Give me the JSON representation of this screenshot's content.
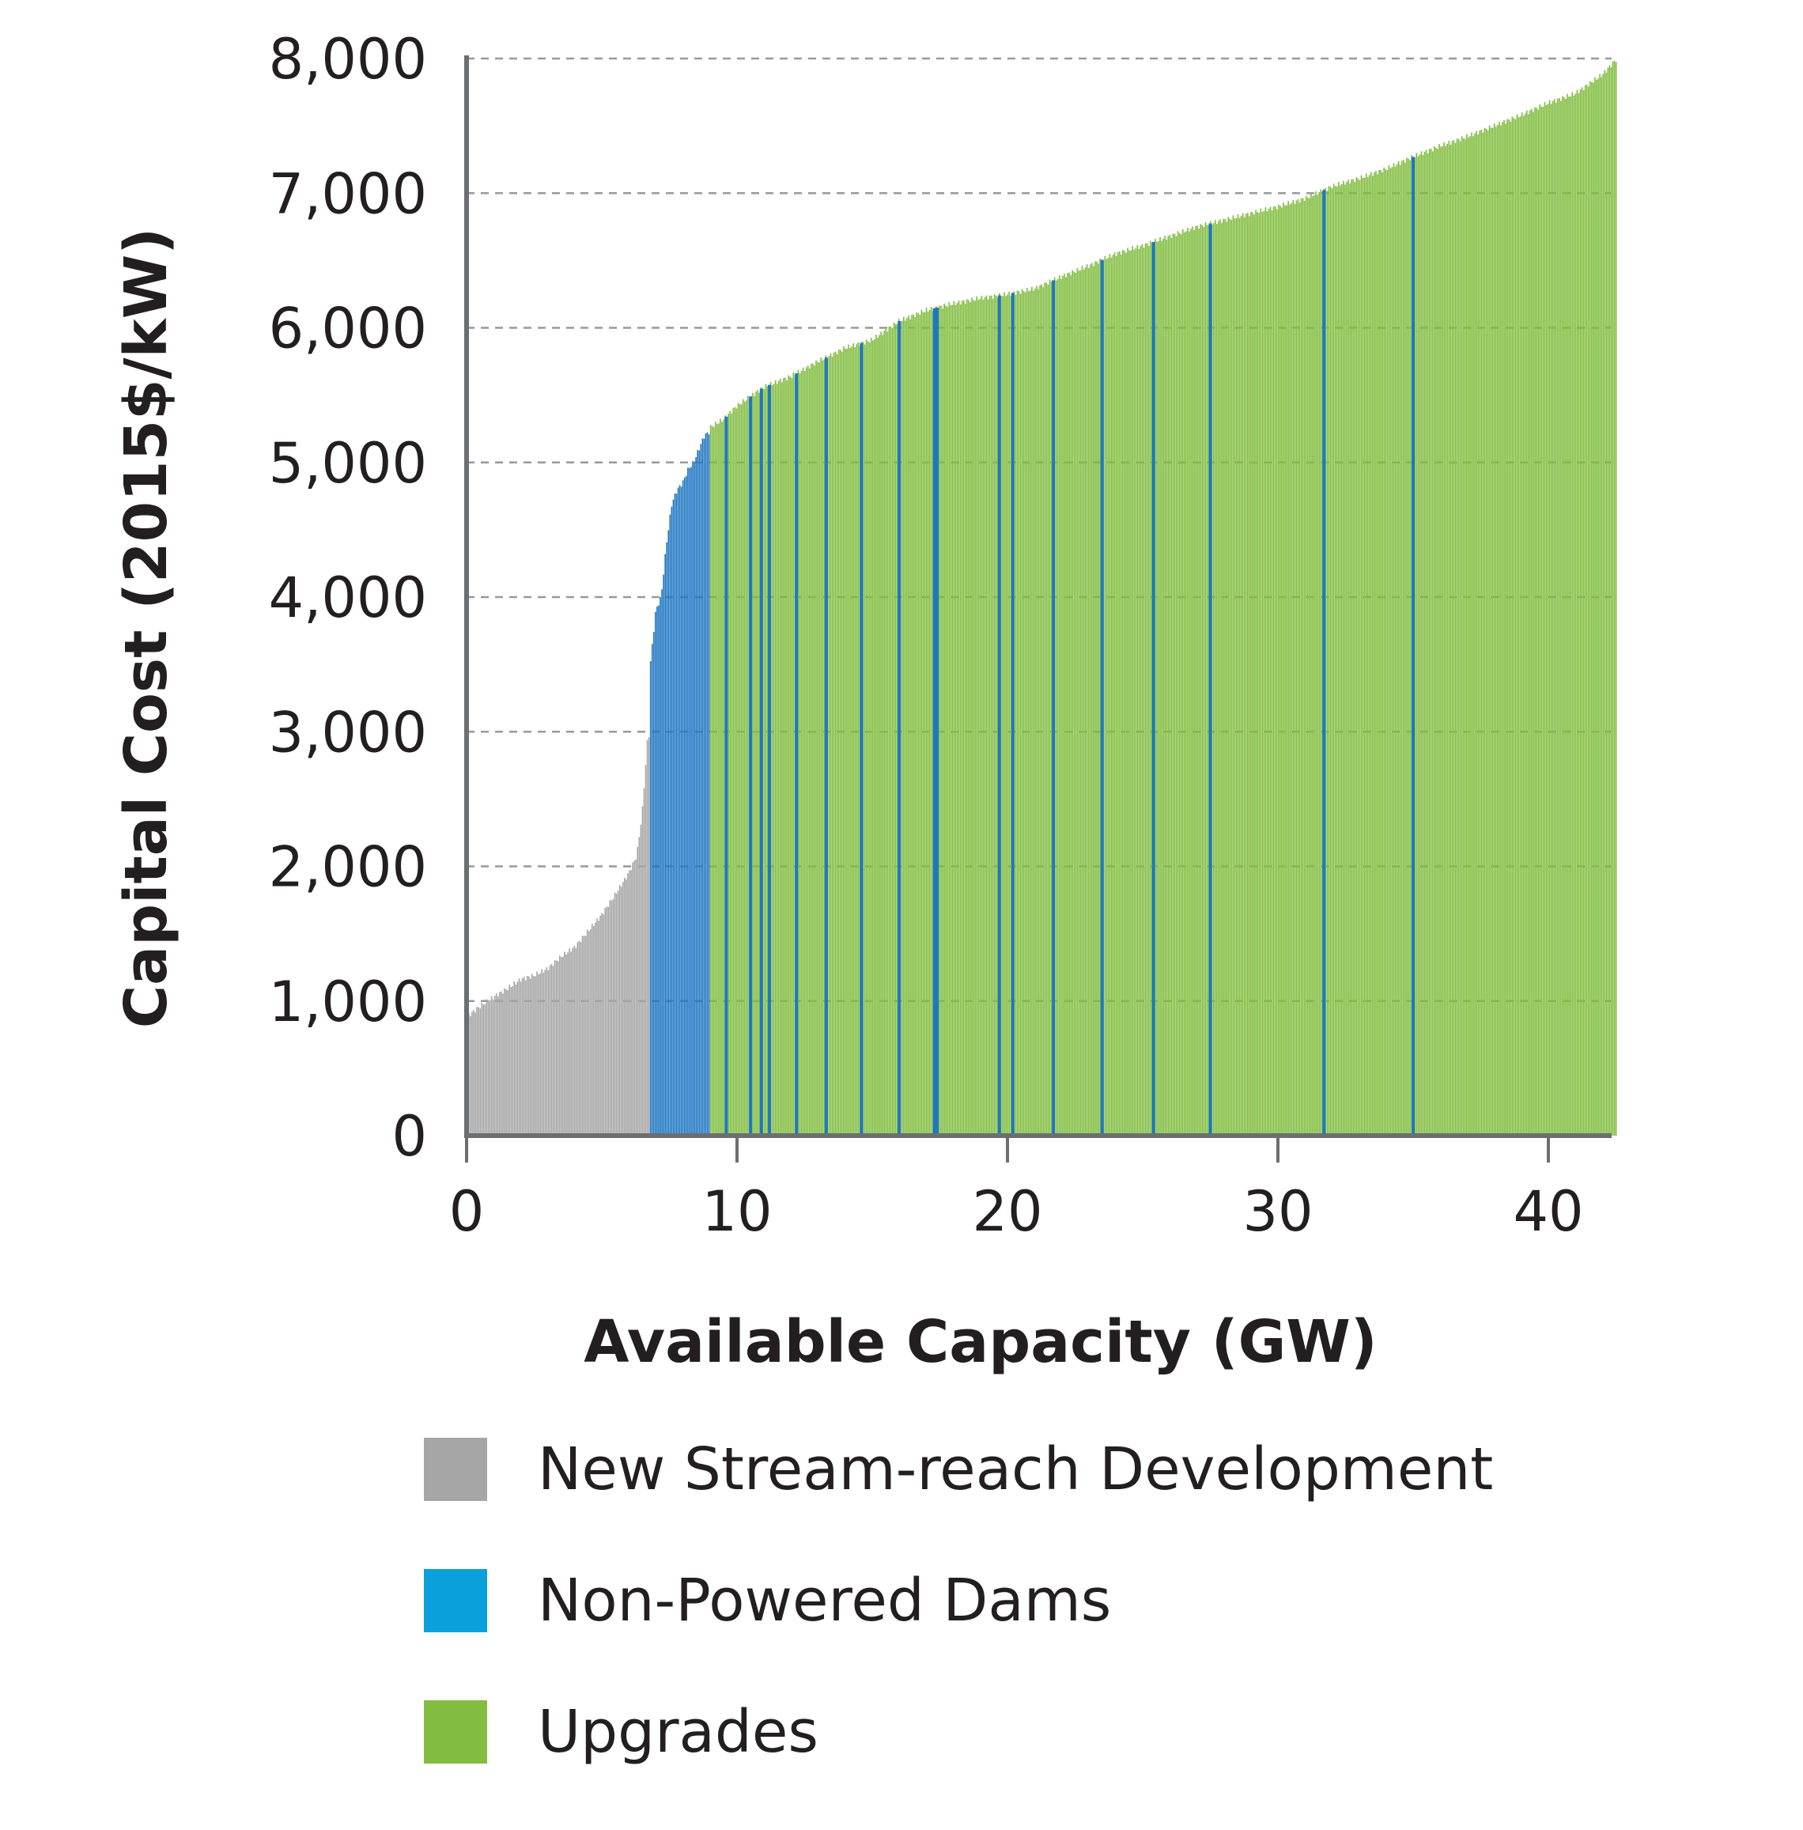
{
  "chart_data": {
    "type": "bar",
    "xlabel": "Available Capacity (GW)",
    "ylabel": "Capital Cost (2015$/kW)",
    "xlim": [
      0,
      42.5
    ],
    "ylim": [
      0,
      8000
    ],
    "xticks": [
      "0",
      "10",
      "20",
      "30",
      "40"
    ],
    "yticks": [
      "0",
      "1,000",
      "2,000",
      "3,000",
      "4,000",
      "5,000",
      "6,000",
      "7,000",
      "8,000"
    ],
    "grid": "horizontal dashed",
    "legend_position": "bottom",
    "series": [
      {
        "name": "New Stream-reach Development",
        "color": "#a6a6a6",
        "curve": [
          [
            0,
            880
          ],
          [
            0.5,
            960
          ],
          [
            1,
            1030
          ],
          [
            1.5,
            1090
          ],
          [
            2,
            1160
          ],
          [
            2.5,
            1190
          ],
          [
            3,
            1240
          ],
          [
            3.5,
            1330
          ],
          [
            4,
            1400
          ],
          [
            4.5,
            1520
          ],
          [
            5,
            1640
          ],
          [
            5.5,
            1790
          ],
          [
            6,
            1950
          ],
          [
            6.3,
            2080
          ],
          [
            6.5,
            2400
          ],
          [
            6.7,
            2950
          ],
          [
            6.8,
            3000
          ]
        ]
      },
      {
        "name": "Non-Powered Dams",
        "color": "#1f77c2",
        "curve": [
          [
            6.8,
            3500
          ],
          [
            7,
            3900
          ],
          [
            7.2,
            4000
          ],
          [
            7.4,
            4400
          ],
          [
            7.6,
            4700
          ],
          [
            7.8,
            4800
          ],
          [
            8,
            4850
          ],
          [
            8.2,
            4950
          ],
          [
            8.4,
            5000
          ],
          [
            8.6,
            5100
          ],
          [
            8.8,
            5200
          ],
          [
            9,
            5230
          ]
        ],
        "scattered_x": [
          9.6,
          10.5,
          10.9,
          11.2,
          12.2,
          13.3,
          14.6,
          16,
          17.3,
          17.4,
          19.7,
          20.2,
          21.7,
          23.5,
          25.4,
          27.5,
          31.7,
          35
        ]
      },
      {
        "name": "Upgrades",
        "color": "#82bd41",
        "curve": [
          [
            9,
            5260
          ],
          [
            9.5,
            5320
          ],
          [
            10,
            5420
          ],
          [
            11,
            5560
          ],
          [
            12,
            5640
          ],
          [
            13,
            5750
          ],
          [
            14,
            5850
          ],
          [
            15,
            5910
          ],
          [
            16,
            6050
          ],
          [
            17,
            6130
          ],
          [
            18,
            6180
          ],
          [
            19,
            6220
          ],
          [
            20,
            6250
          ],
          [
            21,
            6290
          ],
          [
            22,
            6380
          ],
          [
            23,
            6460
          ],
          [
            24,
            6550
          ],
          [
            25,
            6610
          ],
          [
            26,
            6680
          ],
          [
            27,
            6750
          ],
          [
            28,
            6800
          ],
          [
            29,
            6850
          ],
          [
            30,
            6900
          ],
          [
            31,
            6960
          ],
          [
            32,
            7050
          ],
          [
            33,
            7110
          ],
          [
            34,
            7180
          ],
          [
            35,
            7270
          ],
          [
            36,
            7350
          ],
          [
            37,
            7420
          ],
          [
            38,
            7500
          ],
          [
            39,
            7580
          ],
          [
            40,
            7670
          ],
          [
            41,
            7740
          ],
          [
            42,
            7880
          ],
          [
            42.5,
            7990
          ]
        ]
      }
    ]
  }
}
